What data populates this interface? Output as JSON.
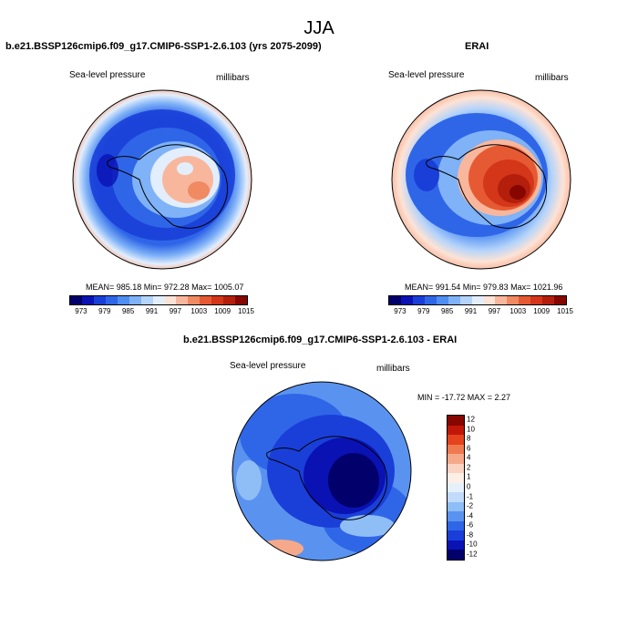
{
  "season": "JJA",
  "panels": [
    {
      "title": "b.e21.BSSP126cmip6.f09_g17.CMIP6-SSP1-2.6.103 (yrs 2075-2099)",
      "variable": "Sea-level pressure",
      "units": "millibars",
      "stats": "MEAN= 985.18  Min= 972.28  Max= 1005.07",
      "colorbar_ticks": [
        "973",
        "979",
        "985",
        "991",
        "997",
        "1003",
        "1009",
        "1015"
      ]
    },
    {
      "title": "ERAI",
      "variable": "Sea-level pressure",
      "units": "millibars",
      "stats": "MEAN= 991.54  Min= 979.83  Max= 1021.96",
      "colorbar_ticks": [
        "973",
        "979",
        "985",
        "991",
        "997",
        "1003",
        "1009",
        "1015"
      ]
    },
    {
      "title": "b.e21.BSSP126cmip6.f09_g17.CMIP6-SSP1-2.6.103 - ERAI",
      "variable": "Sea-level pressure",
      "units": "millibars",
      "stats": "MIN = -17.72 MAX =   2.27",
      "colorbar_ticks": [
        "12",
        "10",
        "8",
        "6",
        "4",
        "2",
        "1",
        "0",
        "-1",
        "-2",
        "-4",
        "-6",
        "-8",
        "-10",
        "-12"
      ]
    }
  ],
  "colors": {
    "abs_scale": [
      "#02006b",
      "#0a12b4",
      "#1a3fd8",
      "#2f66e8",
      "#4f8ef2",
      "#7fb2f7",
      "#b5d4fa",
      "#e3eefc",
      "#fde3d6",
      "#f8b79c",
      "#f08a62",
      "#e65a33",
      "#d4361a",
      "#b41f0c",
      "#870700"
    ],
    "diff_scale": [
      "#870700",
      "#c01808",
      "#e4431e",
      "#f07a50",
      "#f6a98a",
      "#fbd3c2",
      "#fdeee6",
      "#e6f0fc",
      "#c2dbfa",
      "#8fbdf6",
      "#5a93ef",
      "#2f66e8",
      "#1a3fd8",
      "#0a12b4",
      "#02006b"
    ]
  }
}
